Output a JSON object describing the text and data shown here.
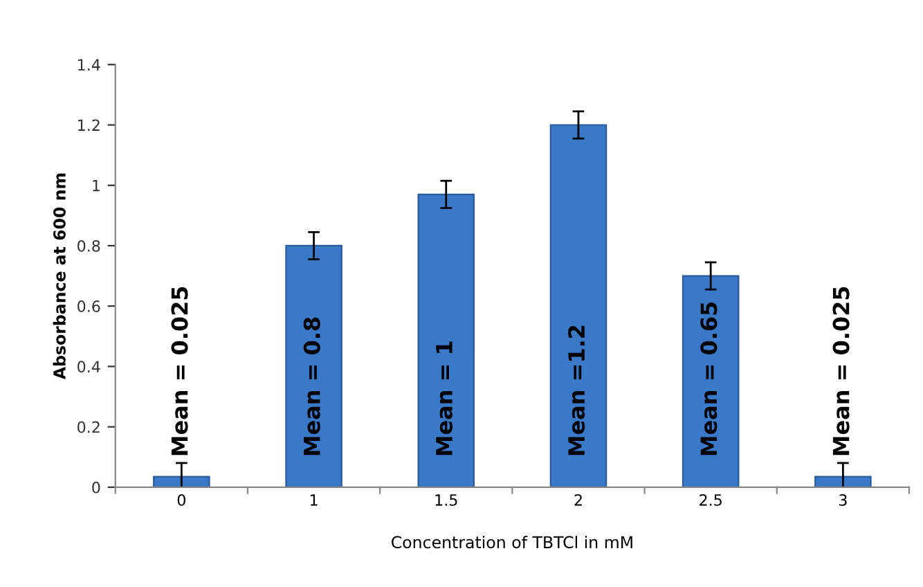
{
  "chart_data": {
    "type": "bar",
    "xlabel": "Concentration of TBTCl in mM",
    "ylabel": "Absorbance at 600 nm",
    "categories": [
      "0",
      "1",
      "1.5",
      "2",
      "2.5",
      "3"
    ],
    "values": [
      0.035,
      0.8,
      0.97,
      1.2,
      0.7,
      0.035
    ],
    "errors": [
      0.045,
      0.045,
      0.045,
      0.045,
      0.045,
      0.045
    ],
    "annotations": [
      "Mean = 0.025",
      "Mean = 0.8",
      "Mean = 1",
      "Mean =1.2",
      "Mean = 0.65",
      "Mean = 0.025"
    ],
    "color": "#3a78c8",
    "ylim": [
      0,
      1.4
    ],
    "yticks": [
      0,
      0.2,
      0.4,
      0.6,
      0.8,
      1,
      1.2,
      1.4
    ],
    "grid": false
  }
}
